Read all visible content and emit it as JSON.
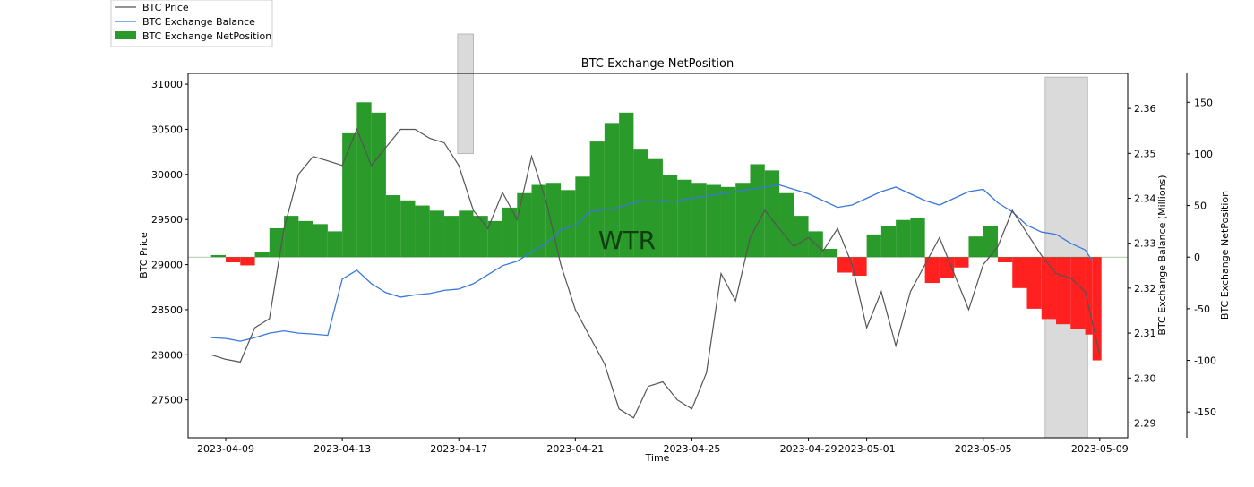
{
  "chart_data": {
    "type": "mixed",
    "title": "BTC Exchange NetPosition",
    "xlabel": "Time",
    "ylabel_left": "BTC Price",
    "ylabel_right1": "BTC Exchange Balance (Millions)",
    "ylabel_right2": "BTC Exchange NetPosition",
    "watermark": "WTR",
    "legend": [
      {
        "name": "BTC Price",
        "color": "#555555",
        "kind": "line"
      },
      {
        "name": "BTC Exchange Balance",
        "color": "#3a78d8",
        "kind": "line"
      },
      {
        "name": "BTC Exchange NetPosition",
        "color": "#2a9a2a",
        "kind": "patch"
      }
    ],
    "legend_position": "top-left outside",
    "x_range": [
      "2023-04-07 17:00",
      "2023-05-09 23:00"
    ],
    "x_ticks": [
      "2023-04-09",
      "2023-04-13",
      "2023-04-17",
      "2023-04-21",
      "2023-04-25",
      "2023-04-29",
      "2023-05-01",
      "2023-05-05",
      "2023-05-09"
    ],
    "ylim_price": [
      27080,
      31120
    ],
    "y_ticks_price": [
      27500,
      28000,
      28500,
      29000,
      29500,
      30000,
      30500,
      31000
    ],
    "ylim_balance": [
      2.2867,
      2.3678
    ],
    "y_ticks_balance": [
      "2.29",
      "2.30",
      "2.31",
      "2.32",
      "2.33",
      "2.34",
      "2.35",
      "2.36"
    ],
    "ylim_netposition": [
      -175,
      178
    ],
    "y_ticks_netposition": [
      -150,
      -100,
      -50,
      0,
      50,
      100,
      150
    ],
    "highlight_regions": [
      {
        "start": "2023-04-16 23:00",
        "end": "2023-04-17 12:00",
        "y_from": 0.78,
        "y_to": 1.0,
        "color": "#d9d9d9"
      },
      {
        "start": "2023-05-07 03:00",
        "end": "2023-05-08 14:00",
        "y_from": 0.0,
        "y_to": 0.98,
        "color": "#d9d9d9"
      }
    ],
    "colors": {
      "positive_bar": "#2a9a2a",
      "negative_bar": "#ff2020",
      "price_line": "#555555",
      "balance_line": "#3a78d8"
    },
    "price_series": {
      "name": "BTC Price",
      "x": [
        "2023-04-08 12:00",
        "2023-04-09 00:00",
        "2023-04-09 12:00",
        "2023-04-10 00:00",
        "2023-04-10 12:00",
        "2023-04-11 00:00",
        "2023-04-11 12:00",
        "2023-04-12 00:00",
        "2023-04-12 12:00",
        "2023-04-13 00:00",
        "2023-04-13 12:00",
        "2023-04-14 00:00",
        "2023-04-14 12:00",
        "2023-04-15 00:00",
        "2023-04-15 12:00",
        "2023-04-16 00:00",
        "2023-04-16 12:00",
        "2023-04-17 00:00",
        "2023-04-17 12:00",
        "2023-04-18 00:00",
        "2023-04-18 12:00",
        "2023-04-19 00:00",
        "2023-04-19 12:00",
        "2023-04-20 00:00",
        "2023-04-20 12:00",
        "2023-04-21 00:00",
        "2023-04-21 12:00",
        "2023-04-22 00:00",
        "2023-04-22 12:00",
        "2023-04-23 00:00",
        "2023-04-23 12:00",
        "2023-04-24 00:00",
        "2023-04-24 12:00",
        "2023-04-25 00:00",
        "2023-04-25 12:00",
        "2023-04-26 00:00",
        "2023-04-26 12:00",
        "2023-04-27 00:00",
        "2023-04-27 12:00",
        "2023-04-28 00:00",
        "2023-04-28 12:00",
        "2023-04-29 00:00",
        "2023-04-29 12:00",
        "2023-04-30 00:00",
        "2023-04-30 12:00",
        "2023-05-01 00:00",
        "2023-05-01 12:00",
        "2023-05-02 00:00",
        "2023-05-02 12:00",
        "2023-05-03 00:00",
        "2023-05-03 12:00",
        "2023-05-04 00:00",
        "2023-05-04 12:00",
        "2023-05-05 00:00",
        "2023-05-05 12:00",
        "2023-05-06 00:00",
        "2023-05-06 12:00",
        "2023-05-07 00:00",
        "2023-05-07 12:00",
        "2023-05-08 00:00",
        "2023-05-08 12:00",
        "2023-05-09 00:00"
      ],
      "values": [
        28000,
        27950,
        27920,
        28300,
        28400,
        29400,
        30000,
        30200,
        30150,
        30100,
        30500,
        30100,
        30300,
        30500,
        30500,
        30400,
        30350,
        30100,
        29600,
        29400,
        29800,
        29500,
        30200,
        29700,
        29000,
        28500,
        28200,
        27900,
        27400,
        27300,
        27650,
        27700,
        27500,
        27400,
        27800,
        28900,
        28600,
        29300,
        29600,
        29400,
        29200,
        29300,
        29150,
        29400,
        29000,
        28300,
        28700,
        28100,
        28700,
        29000,
        29300,
        28900,
        28500,
        29000,
        29200,
        29600,
        29350,
        29100,
        28900,
        28850,
        28700,
        28000
      ]
    },
    "balance_series": {
      "name": "BTC Exchange Balance",
      "x": [
        "2023-04-08 12:00",
        "2023-04-09 00:00",
        "2023-04-09 12:00",
        "2023-04-10 00:00",
        "2023-04-10 12:00",
        "2023-04-11 00:00",
        "2023-04-11 12:00",
        "2023-04-12 00:00",
        "2023-04-12 12:00",
        "2023-04-13 00:00",
        "2023-04-13 12:00",
        "2023-04-14 00:00",
        "2023-04-14 12:00",
        "2023-04-15 00:00",
        "2023-04-15 12:00",
        "2023-04-16 00:00",
        "2023-04-16 12:00",
        "2023-04-17 00:00",
        "2023-04-17 12:00",
        "2023-04-18 00:00",
        "2023-04-18 12:00",
        "2023-04-19 00:00",
        "2023-04-19 12:00",
        "2023-04-20 00:00",
        "2023-04-20 12:00",
        "2023-04-21 00:00",
        "2023-04-21 12:00",
        "2023-04-22 00:00",
        "2023-04-22 12:00",
        "2023-04-23 00:00",
        "2023-04-23 12:00",
        "2023-04-24 00:00",
        "2023-04-24 12:00",
        "2023-04-25 00:00",
        "2023-04-25 12:00",
        "2023-04-26 00:00",
        "2023-04-26 12:00",
        "2023-04-27 00:00",
        "2023-04-27 12:00",
        "2023-04-28 00:00",
        "2023-04-28 12:00",
        "2023-04-29 00:00",
        "2023-04-29 12:00",
        "2023-04-30 00:00",
        "2023-04-30 12:00",
        "2023-05-01 00:00",
        "2023-05-01 12:00",
        "2023-05-02 00:00",
        "2023-05-02 12:00",
        "2023-05-03 00:00",
        "2023-05-03 12:00",
        "2023-05-04 00:00",
        "2023-05-04 12:00",
        "2023-05-05 00:00",
        "2023-05-05 12:00",
        "2023-05-06 00:00",
        "2023-05-06 12:00",
        "2023-05-07 00:00",
        "2023-05-07 12:00",
        "2023-05-08 00:00",
        "2023-05-08 12:00",
        "2023-05-08 18:00"
      ],
      "values": [
        2.309,
        2.3088,
        2.3082,
        2.309,
        2.31,
        2.3105,
        2.31,
        2.3098,
        2.3095,
        2.322,
        2.324,
        2.321,
        2.319,
        2.318,
        2.3185,
        2.3188,
        2.3195,
        2.3198,
        2.321,
        2.323,
        2.325,
        2.326,
        2.328,
        2.33,
        2.333,
        2.334,
        2.337,
        2.3375,
        2.338,
        2.339,
        2.3395,
        2.3392,
        2.3395,
        2.34,
        2.3405,
        2.341,
        2.3415,
        2.342,
        2.3425,
        2.343,
        2.342,
        2.341,
        2.3395,
        2.338,
        2.3385,
        2.34,
        2.3415,
        2.3425,
        2.341,
        2.3395,
        2.3385,
        2.34,
        2.3415,
        2.342,
        2.339,
        2.337,
        2.334,
        2.3325,
        2.332,
        2.33,
        2.3285,
        2.326
      ]
    },
    "netposition_series": {
      "name": "BTC Exchange NetPosition",
      "x": [
        "2023-04-08 12:00",
        "2023-04-09 00:00",
        "2023-04-09 12:00",
        "2023-04-10 00:00",
        "2023-04-10 12:00",
        "2023-04-11 00:00",
        "2023-04-11 12:00",
        "2023-04-12 00:00",
        "2023-04-12 12:00",
        "2023-04-13 00:00",
        "2023-04-13 12:00",
        "2023-04-14 00:00",
        "2023-04-14 12:00",
        "2023-04-15 00:00",
        "2023-04-15 12:00",
        "2023-04-16 00:00",
        "2023-04-16 12:00",
        "2023-04-17 00:00",
        "2023-04-17 12:00",
        "2023-04-18 00:00",
        "2023-04-18 12:00",
        "2023-04-19 00:00",
        "2023-04-19 12:00",
        "2023-04-20 00:00",
        "2023-04-20 12:00",
        "2023-04-21 00:00",
        "2023-04-21 12:00",
        "2023-04-22 00:00",
        "2023-04-22 12:00",
        "2023-04-23 00:00",
        "2023-04-23 12:00",
        "2023-04-24 00:00",
        "2023-04-24 12:00",
        "2023-04-25 00:00",
        "2023-04-25 12:00",
        "2023-04-26 00:00",
        "2023-04-26 12:00",
        "2023-04-27 00:00",
        "2023-04-27 12:00",
        "2023-04-28 00:00",
        "2023-04-28 12:00",
        "2023-04-29 00:00",
        "2023-04-29 12:00",
        "2023-04-30 00:00",
        "2023-04-30 12:00",
        "2023-05-01 00:00",
        "2023-05-01 12:00",
        "2023-05-02 00:00",
        "2023-05-02 12:00",
        "2023-05-03 00:00",
        "2023-05-03 12:00",
        "2023-05-04 00:00",
        "2023-05-04 12:00",
        "2023-05-05 00:00",
        "2023-05-05 12:00",
        "2023-05-06 00:00",
        "2023-05-06 12:00",
        "2023-05-07 00:00",
        "2023-05-07 12:00",
        "2023-05-08 00:00",
        "2023-05-08 12:00",
        "2023-05-08 18:00"
      ],
      "values": [
        2,
        -5,
        -8,
        5,
        28,
        40,
        35,
        32,
        25,
        120,
        150,
        140,
        60,
        55,
        50,
        45,
        40,
        45,
        40,
        35,
        48,
        62,
        70,
        72,
        65,
        78,
        112,
        130,
        140,
        105,
        95,
        80,
        75,
        72,
        70,
        68,
        72,
        90,
        84,
        62,
        40,
        25,
        8,
        -15,
        -18,
        22,
        30,
        36,
        38,
        -25,
        -20,
        -10,
        20,
        30,
        -5,
        -30,
        -50,
        -60,
        -65,
        -70,
        -75,
        -100
      ]
    }
  }
}
